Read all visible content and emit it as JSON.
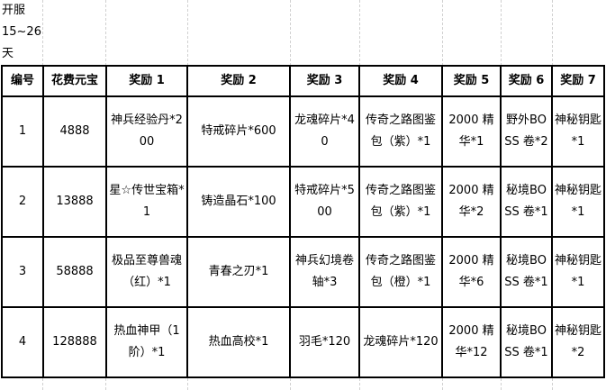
{
  "title": "开服15~26天",
  "headers": [
    "编号",
    "花费元宝",
    "奖励 1",
    "奖励 2",
    "奖励 3",
    "奖励 4",
    "奖励 5",
    "奖励 6",
    "奖励 7"
  ],
  "rows": [
    [
      "1",
      "4888",
      "神兵经验丹*200",
      "特戒碎片*600",
      "龙魂碎片*40",
      "传奇之路图鉴包（紫）*1",
      "2000 精华*1",
      "野外BOSS 卷*2",
      "神秘钥匙*1"
    ],
    [
      "2",
      "13888",
      "星☆传世宝箱*1",
      "铸造晶石*100",
      "特戒碎片*500",
      "传奇之路图鉴包（紫）*1",
      "2000 精华*2",
      "秘境BOSS 卷*1",
      "神秘钥匙*1"
    ],
    [
      "3",
      "58888",
      "极品至尊兽魂（红）*1",
      "青春之刃*1",
      "神兵幻境卷轴*3",
      "传奇之路图鉴包（橙）*1",
      "2000 精华*6",
      "秘境BOSS 卷*1",
      "神秘钥匙*1"
    ],
    [
      "4",
      "128888",
      "热血神甲（1阶）*1",
      "热血高校*1",
      "羽毛*120",
      "龙魂碎片*120",
      "2000 精华*12",
      "秘境BOSS 卷*1",
      "神秘钥匙*2"
    ]
  ]
}
